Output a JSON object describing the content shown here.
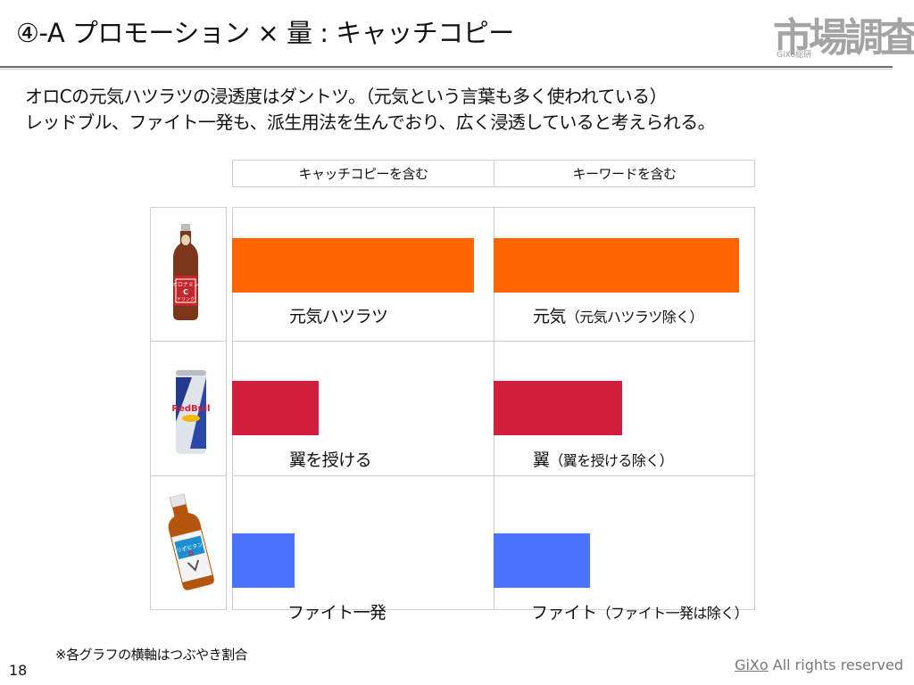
{
  "header": {
    "title": "④-A プロモーション × 量 : キャッチコピー",
    "logo_main": "市場調査課",
    "logo_sub": "GiXo総研"
  },
  "lead": {
    "line1": "オロCの元気ハツラツの浸透度はダントツ。（元気という言葉も多く使われている）",
    "line2": "レッドブル、ファイト一発も、派生用法を生んでおり、広く浸透していると考えられる。"
  },
  "chart_data": {
    "type": "bar",
    "orientation": "horizontal",
    "title": "",
    "columns": [
      "キャッチコピーを含む",
      "キーワードを含む"
    ],
    "categories": [
      "オロナミンC",
      "レッドブル",
      "リポビタンD"
    ],
    "xlabel": "つぶやき割合",
    "ylabel": "",
    "xlim": [
      0,
      1
    ],
    "grid": true,
    "legend": "none",
    "series": [
      {
        "name": "キャッチコピーを含む",
        "labels": [
          "元気ハツラツ",
          "翼を授ける",
          "ファイト一発"
        ],
        "values": [
          0.925,
          0.33,
          0.24
        ],
        "colors": [
          "#ff6600",
          "#d11f3d",
          "#4a73ff"
        ]
      },
      {
        "name": "キーワードを含む",
        "labels": [
          "元気（元気ハツラツ除く）",
          "翼（翼を授ける除く）",
          "ファイト（ファイト一発は除く）"
        ],
        "values": [
          0.94,
          0.49,
          0.37
        ],
        "colors": [
          "#ff6600",
          "#d11f3d",
          "#4a73ff"
        ]
      }
    ]
  },
  "rows": [
    {
      "product": "オロナミンC",
      "icon": "bottle-orange-icon",
      "left_label": "元気ハツラツ",
      "right_main": "元気",
      "right_sub": "（元気ハツラツ除く）"
    },
    {
      "product": "レッドブル",
      "icon": "can-redbull-icon",
      "left_label": "翼を授ける",
      "right_main": "翼",
      "right_sub": "（翼を授ける除く）"
    },
    {
      "product": "リポビタンD",
      "icon": "bottle-lipovitan-icon",
      "left_label": "ファイト一発",
      "right_main": "ファイト",
      "right_sub": "（ファイト一発は除く）"
    }
  ],
  "footer": {
    "note": "※各グラフの横軸はつぶやき割合",
    "page_number": "18",
    "copyright_brand": "GiXo",
    "copyright_rest": " All rights reserved"
  }
}
